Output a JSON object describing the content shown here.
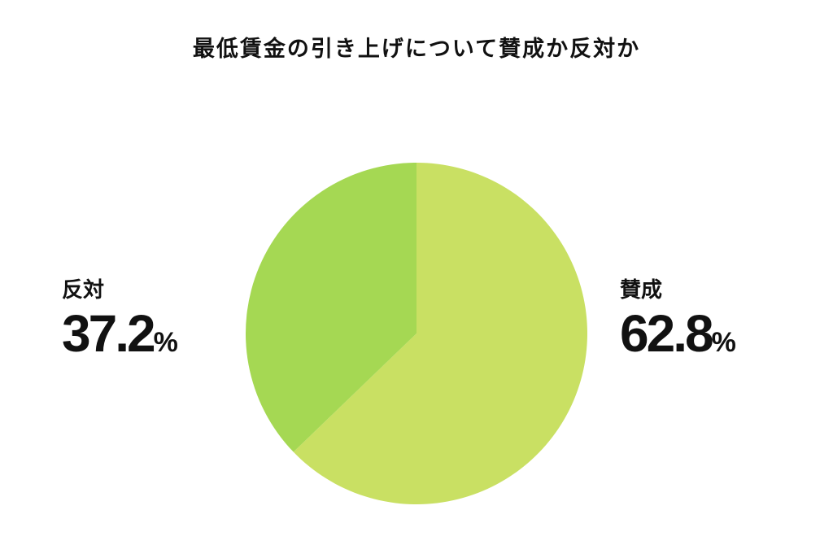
{
  "chart_data": {
    "type": "pie",
    "title": "最低賃金の引き上げについて賛成か反対か",
    "slices": [
      {
        "label": "賛成",
        "value": 62.8,
        "value_label": "62.8",
        "color": "#c9e063"
      },
      {
        "label": "反対",
        "value": 37.2,
        "value_label": "37.2",
        "color": "#a5d853"
      }
    ],
    "unit": "%",
    "start_angle": "12 o'clock",
    "direction": "clockwise"
  }
}
